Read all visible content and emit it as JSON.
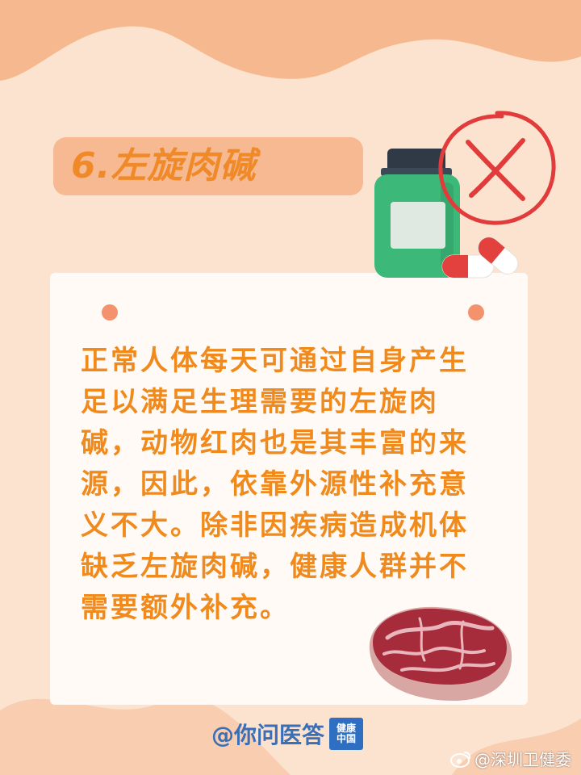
{
  "title": "6.左旋肉碱",
  "body_text": "正常人体每天可通过自身产生\n足以满足生理需要的左旋肉\n碱，动物红肉也是其丰富的来\n源，因此，依靠外源性补充意\n义不大。除非因疾病造成机体\n缺乏左旋肉碱，健康人群并不\n需要额外补充。",
  "footer": {
    "logo_text": "@你问医答",
    "badge_line1": "健康",
    "badge_line2": "中国"
  },
  "watermark": "@深圳卫健委",
  "illustrations": {
    "bottle": "supplement-bottle",
    "pills": "capsule-pills",
    "prohibited": "cross-mark-icon",
    "meat": "red-meat-steak"
  },
  "colors": {
    "background": "#fce3cf",
    "title_pill": "#f6b992",
    "title_text": "#f08a28",
    "body_text": "#f08a1c",
    "card": "#fffaf6",
    "cross": "#e23b3b",
    "bottle": "#3cb878"
  }
}
